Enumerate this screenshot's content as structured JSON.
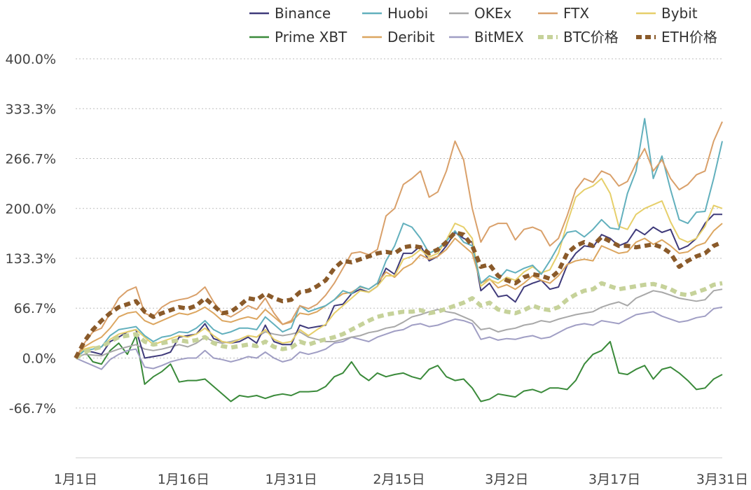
{
  "chart_data": {
    "type": "line",
    "title": "",
    "xlabel": "",
    "ylabel": "",
    "x_ticks": [
      "1月1日",
      "1月16日",
      "1月31日",
      "2月15日",
      "3月2日",
      "3月17日",
      "3月31日"
    ],
    "x_range": [
      "1月1日",
      "3月31日"
    ],
    "y_ticks": [
      "400.0%",
      "333.3%",
      "266.7%",
      "200.0%",
      "133.3%",
      "66.7%",
      "0.0%",
      "-66.7%"
    ],
    "ylim": [
      -133.3,
      400.0
    ],
    "grid": "horizontal dotted",
    "legend_position": "top",
    "series": [
      {
        "name": "Binance",
        "color": "#3f3a7a",
        "style": "solid",
        "values": [
          0,
          10,
          8,
          5,
          22,
          28,
          35,
          38,
          0,
          2,
          4,
          8,
          28,
          30,
          32,
          46,
          26,
          22,
          20,
          22,
          28,
          20,
          44,
          22,
          18,
          18,
          44,
          40,
          42,
          44,
          70,
          72,
          86,
          92,
          88,
          96,
          120,
          112,
          140,
          140,
          150,
          130,
          136,
          150,
          168,
          160,
          155,
          90,
          100,
          82,
          84,
          75,
          95,
          100,
          104,
          92,
          95,
          124,
          140,
          150,
          148,
          165,
          160,
          150,
          155,
          172,
          165,
          175,
          168,
          172,
          145,
          150,
          160,
          180,
          192,
          192
        ]
      },
      {
        "name": "Huobi",
        "color": "#62b0bd",
        "style": "solid",
        "values": [
          0,
          10,
          12,
          15,
          30,
          38,
          40,
          42,
          30,
          22,
          28,
          30,
          35,
          34,
          40,
          50,
          38,
          32,
          35,
          40,
          40,
          38,
          55,
          45,
          35,
          40,
          70,
          62,
          66,
          70,
          78,
          90,
          86,
          96,
          92,
          100,
          130,
          150,
          180,
          175,
          160,
          140,
          146,
          156,
          170,
          155,
          150,
          100,
          110,
          105,
          118,
          114,
          120,
          124,
          112,
          130,
          150,
          168,
          170,
          162,
          172,
          185,
          174,
          172,
          220,
          250,
          320,
          240,
          270,
          225,
          185,
          180,
          195,
          196,
          240,
          290
        ]
      },
      {
        "name": "OKEx",
        "color": "#a8a8a8",
        "style": "solid",
        "values": [
          0,
          5,
          4,
          3,
          8,
          12,
          15,
          18,
          12,
          10,
          12,
          15,
          18,
          15,
          20,
          28,
          22,
          20,
          22,
          25,
          30,
          28,
          35,
          32,
          30,
          32,
          35,
          28,
          25,
          22,
          22,
          25,
          28,
          30,
          34,
          36,
          40,
          42,
          48,
          55,
          58,
          62,
          65,
          62,
          60,
          55,
          50,
          38,
          40,
          35,
          38,
          40,
          44,
          46,
          50,
          48,
          52,
          55,
          58,
          60,
          62,
          68,
          72,
          75,
          70,
          80,
          85,
          90,
          88,
          84,
          80,
          78,
          76,
          78,
          90,
          92
        ]
      },
      {
        "name": "FTX",
        "color": "#d9a06a",
        "style": "solid",
        "values": [
          0,
          20,
          35,
          40,
          60,
          80,
          90,
          95,
          60,
          55,
          68,
          75,
          78,
          80,
          85,
          95,
          75,
          60,
          55,
          62,
          70,
          65,
          80,
          60,
          45,
          50,
          70,
          66,
          72,
          84,
          100,
          120,
          140,
          142,
          138,
          145,
          190,
          200,
          232,
          240,
          250,
          215,
          222,
          250,
          290,
          265,
          200,
          155,
          175,
          180,
          180,
          158,
          172,
          175,
          170,
          150,
          160,
          190,
          225,
          240,
          235,
          250,
          245,
          230,
          236,
          260,
          280,
          250,
          265,
          240,
          225,
          232,
          245,
          250,
          290,
          316
        ]
      },
      {
        "name": "Bybit",
        "color": "#e6cf6a",
        "style": "solid",
        "values": [
          0,
          12,
          15,
          15,
          25,
          32,
          35,
          38,
          28,
          18,
          22,
          26,
          30,
          28,
          32,
          40,
          30,
          22,
          20,
          25,
          30,
          28,
          38,
          25,
          20,
          22,
          38,
          30,
          38,
          45,
          60,
          70,
          80,
          90,
          88,
          96,
          110,
          110,
          132,
          136,
          145,
          135,
          140,
          158,
          180,
          175,
          160,
          96,
          105,
          100,
          108,
          104,
          115,
          122,
          114,
          118,
          140,
          180,
          215,
          225,
          230,
          240,
          220,
          176,
          172,
          192,
          200,
          205,
          210,
          182,
          160,
          155,
          160,
          176,
          204,
          200
        ]
      },
      {
        "name": "Prime XBT",
        "color": "#3a8a3a",
        "style": "solid",
        "values": [
          0,
          10,
          -5,
          -8,
          10,
          20,
          5,
          30,
          -35,
          -25,
          -18,
          -8,
          -32,
          -30,
          -30,
          -28,
          -38,
          -48,
          -58,
          -50,
          -52,
          -50,
          -54,
          -50,
          -48,
          -50,
          -45,
          -45,
          -44,
          -38,
          -25,
          -20,
          -5,
          -22,
          -30,
          -20,
          -25,
          -22,
          -20,
          -25,
          -28,
          -15,
          -10,
          -25,
          -30,
          -28,
          -40,
          -58,
          -55,
          -48,
          -50,
          -52,
          -44,
          -42,
          -46,
          -40,
          -40,
          -42,
          -30,
          -8,
          5,
          10,
          22,
          -20,
          -22,
          -15,
          -10,
          -28,
          -15,
          -12,
          -20,
          -30,
          -42,
          -40,
          -28,
          -22
        ]
      },
      {
        "name": "Deribit",
        "color": "#dca660",
        "style": "solid",
        "values": [
          0,
          15,
          22,
          28,
          40,
          55,
          60,
          62,
          50,
          45,
          50,
          55,
          60,
          58,
          62,
          68,
          60,
          50,
          48,
          52,
          55,
          52,
          65,
          55,
          45,
          48,
          60,
          58,
          62,
          70,
          78,
          86,
          88,
          95,
          92,
          100,
          115,
          108,
          120,
          126,
          138,
          132,
          136,
          145,
          160,
          150,
          140,
          100,
          106,
          94,
          98,
          92,
          100,
          110,
          104,
          100,
          110,
          125,
          130,
          132,
          130,
          150,
          145,
          140,
          142,
          155,
          160,
          152,
          158,
          150,
          140,
          142,
          150,
          154,
          170,
          180
        ]
      },
      {
        "name": "BitMEX",
        "color": "#a09ec4",
        "style": "solid",
        "values": [
          0,
          -5,
          -10,
          -15,
          -2,
          5,
          10,
          12,
          -12,
          -14,
          -10,
          -5,
          -2,
          0,
          0,
          10,
          0,
          -2,
          -5,
          -2,
          2,
          0,
          8,
          0,
          -5,
          -2,
          8,
          5,
          8,
          12,
          20,
          22,
          28,
          25,
          22,
          28,
          32,
          36,
          38,
          44,
          46,
          42,
          44,
          48,
          52,
          50,
          46,
          25,
          28,
          24,
          26,
          25,
          28,
          30,
          26,
          28,
          34,
          40,
          44,
          46,
          44,
          50,
          48,
          46,
          52,
          58,
          60,
          62,
          56,
          52,
          48,
          50,
          54,
          56,
          66,
          68
        ]
      },
      {
        "name": "BTC价格",
        "color": "#c6d29a",
        "style": "dashed",
        "values": [
          0,
          8,
          12,
          15,
          22,
          28,
          30,
          32,
          22,
          18,
          20,
          22,
          24,
          22,
          24,
          28,
          20,
          16,
          14,
          16,
          18,
          16,
          22,
          15,
          12,
          14,
          22,
          18,
          22,
          25,
          28,
          32,
          38,
          44,
          50,
          55,
          58,
          60,
          62,
          62,
          64,
          60,
          62,
          66,
          70,
          74,
          80,
          70,
          74,
          65,
          62,
          60,
          64,
          70,
          66,
          64,
          68,
          78,
          85,
          90,
          92,
          100,
          96,
          92,
          94,
          96,
          98,
          99,
          96,
          92,
          86,
          84,
          88,
          92,
          98,
          100
        ]
      },
      {
        "name": "ETH价格",
        "color": "#8a5a2a",
        "style": "dashed",
        "values": [
          0,
          22,
          38,
          50,
          60,
          68,
          72,
          76,
          62,
          55,
          60,
          64,
          68,
          66,
          70,
          80,
          70,
          60,
          62,
          70,
          80,
          78,
          86,
          80,
          76,
          78,
          88,
          90,
          96,
          104,
          120,
          130,
          128,
          132,
          136,
          140,
          142,
          140,
          148,
          150,
          148,
          140,
          145,
          155,
          168,
          165,
          150,
          122,
          125,
          110,
          104,
          100,
          108,
          112,
          110,
          106,
          116,
          140,
          150,
          155,
          150,
          162,
          156,
          150,
          150,
          148,
          150,
          152,
          148,
          140,
          122,
          130,
          136,
          140,
          150,
          155
        ]
      }
    ]
  }
}
